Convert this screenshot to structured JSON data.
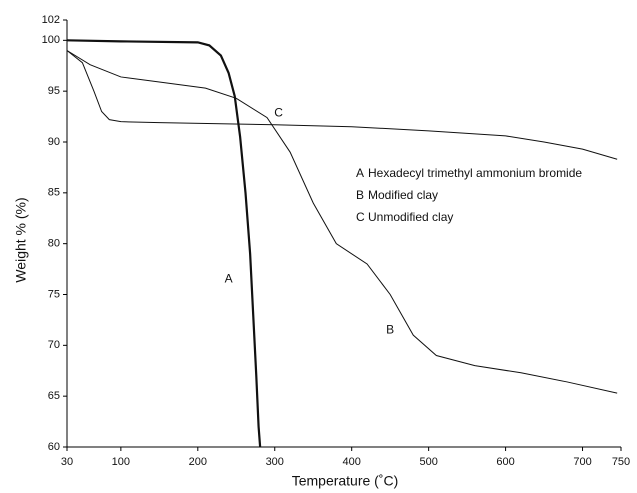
{
  "chart_data": {
    "type": "line",
    "x_label": "Temperature (˚C)",
    "y_label": "Weight % (%)",
    "xlim": [
      30,
      750
    ],
    "xticks": [
      30,
      100,
      200,
      300,
      400,
      500,
      600,
      700,
      750
    ],
    "ylim": [
      60,
      102
    ],
    "yticks": [
      60,
      65,
      70,
      75,
      80,
      85,
      90,
      95,
      100,
      102
    ],
    "grid": false,
    "series": [
      {
        "label": "A",
        "name": "Hexadecyl trimethyl ammonium bromide",
        "color": "#111111",
        "x": [
          30,
          100,
          200,
          215,
          230,
          240,
          248,
          255,
          262,
          268,
          272,
          276,
          279,
          281
        ],
        "values": [
          100,
          99.9,
          99.8,
          99.5,
          98.5,
          96.8,
          94.5,
          90.5,
          85,
          79,
          73,
          67,
          62,
          60
        ]
      },
      {
        "label": "B",
        "name": "Modified clay",
        "color": "#111111",
        "x": [
          30,
          60,
          100,
          150,
          210,
          250,
          290,
          320,
          350,
          380,
          420,
          450,
          480,
          510,
          560,
          620,
          680,
          745
        ],
        "values": [
          99,
          97.6,
          96.4,
          95.9,
          95.3,
          94.3,
          92.4,
          89,
          84,
          80,
          78,
          75,
          71,
          69,
          68,
          67.3,
          66.4,
          65.3
        ]
      },
      {
        "label": "C",
        "name": "Unmodified clay",
        "color": "#111111",
        "x": [
          30,
          50,
          65,
          75,
          85,
          100,
          150,
          300,
          400,
          500,
          600,
          650,
          700,
          745
        ],
        "values": [
          99,
          97.8,
          95,
          93,
          92.2,
          92,
          91.9,
          91.7,
          91.5,
          91.1,
          90.6,
          90,
          89.3,
          88.3
        ]
      }
    ]
  }
}
